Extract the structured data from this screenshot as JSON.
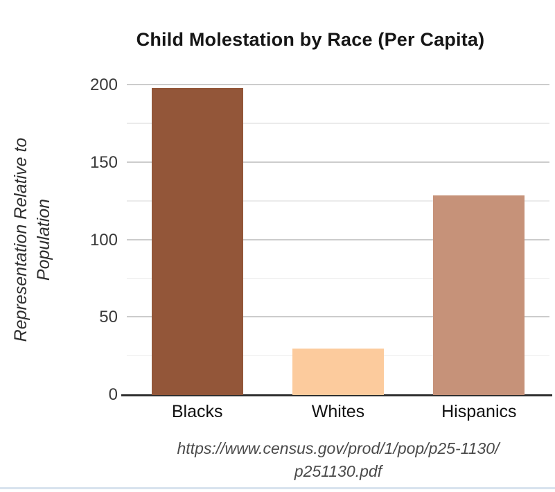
{
  "chart_data": {
    "type": "bar",
    "title": "Child Molestation by Race (Per Capita)",
    "categories": [
      "Blacks",
      "Whites",
      "Hispanics"
    ],
    "values": [
      198,
      30,
      129
    ],
    "bar_colors": [
      "#935639",
      "#FCCB9D",
      "#C69279"
    ],
    "ylabel": "Representation Relative to Population",
    "ylabel_line1": "Representation Relative to",
    "ylabel_line2": "Population",
    "xlabel": "",
    "ylim": [
      0,
      200
    ],
    "yticks": [
      0,
      50,
      100,
      150,
      200
    ],
    "minor_yticks": [
      25,
      75,
      125,
      175
    ],
    "grid": "horizontal",
    "legend": "none",
    "source_line1": "https://www.census.gov/prod/1/pop/p25-1130/",
    "source_line2": "p251130.pdf"
  }
}
